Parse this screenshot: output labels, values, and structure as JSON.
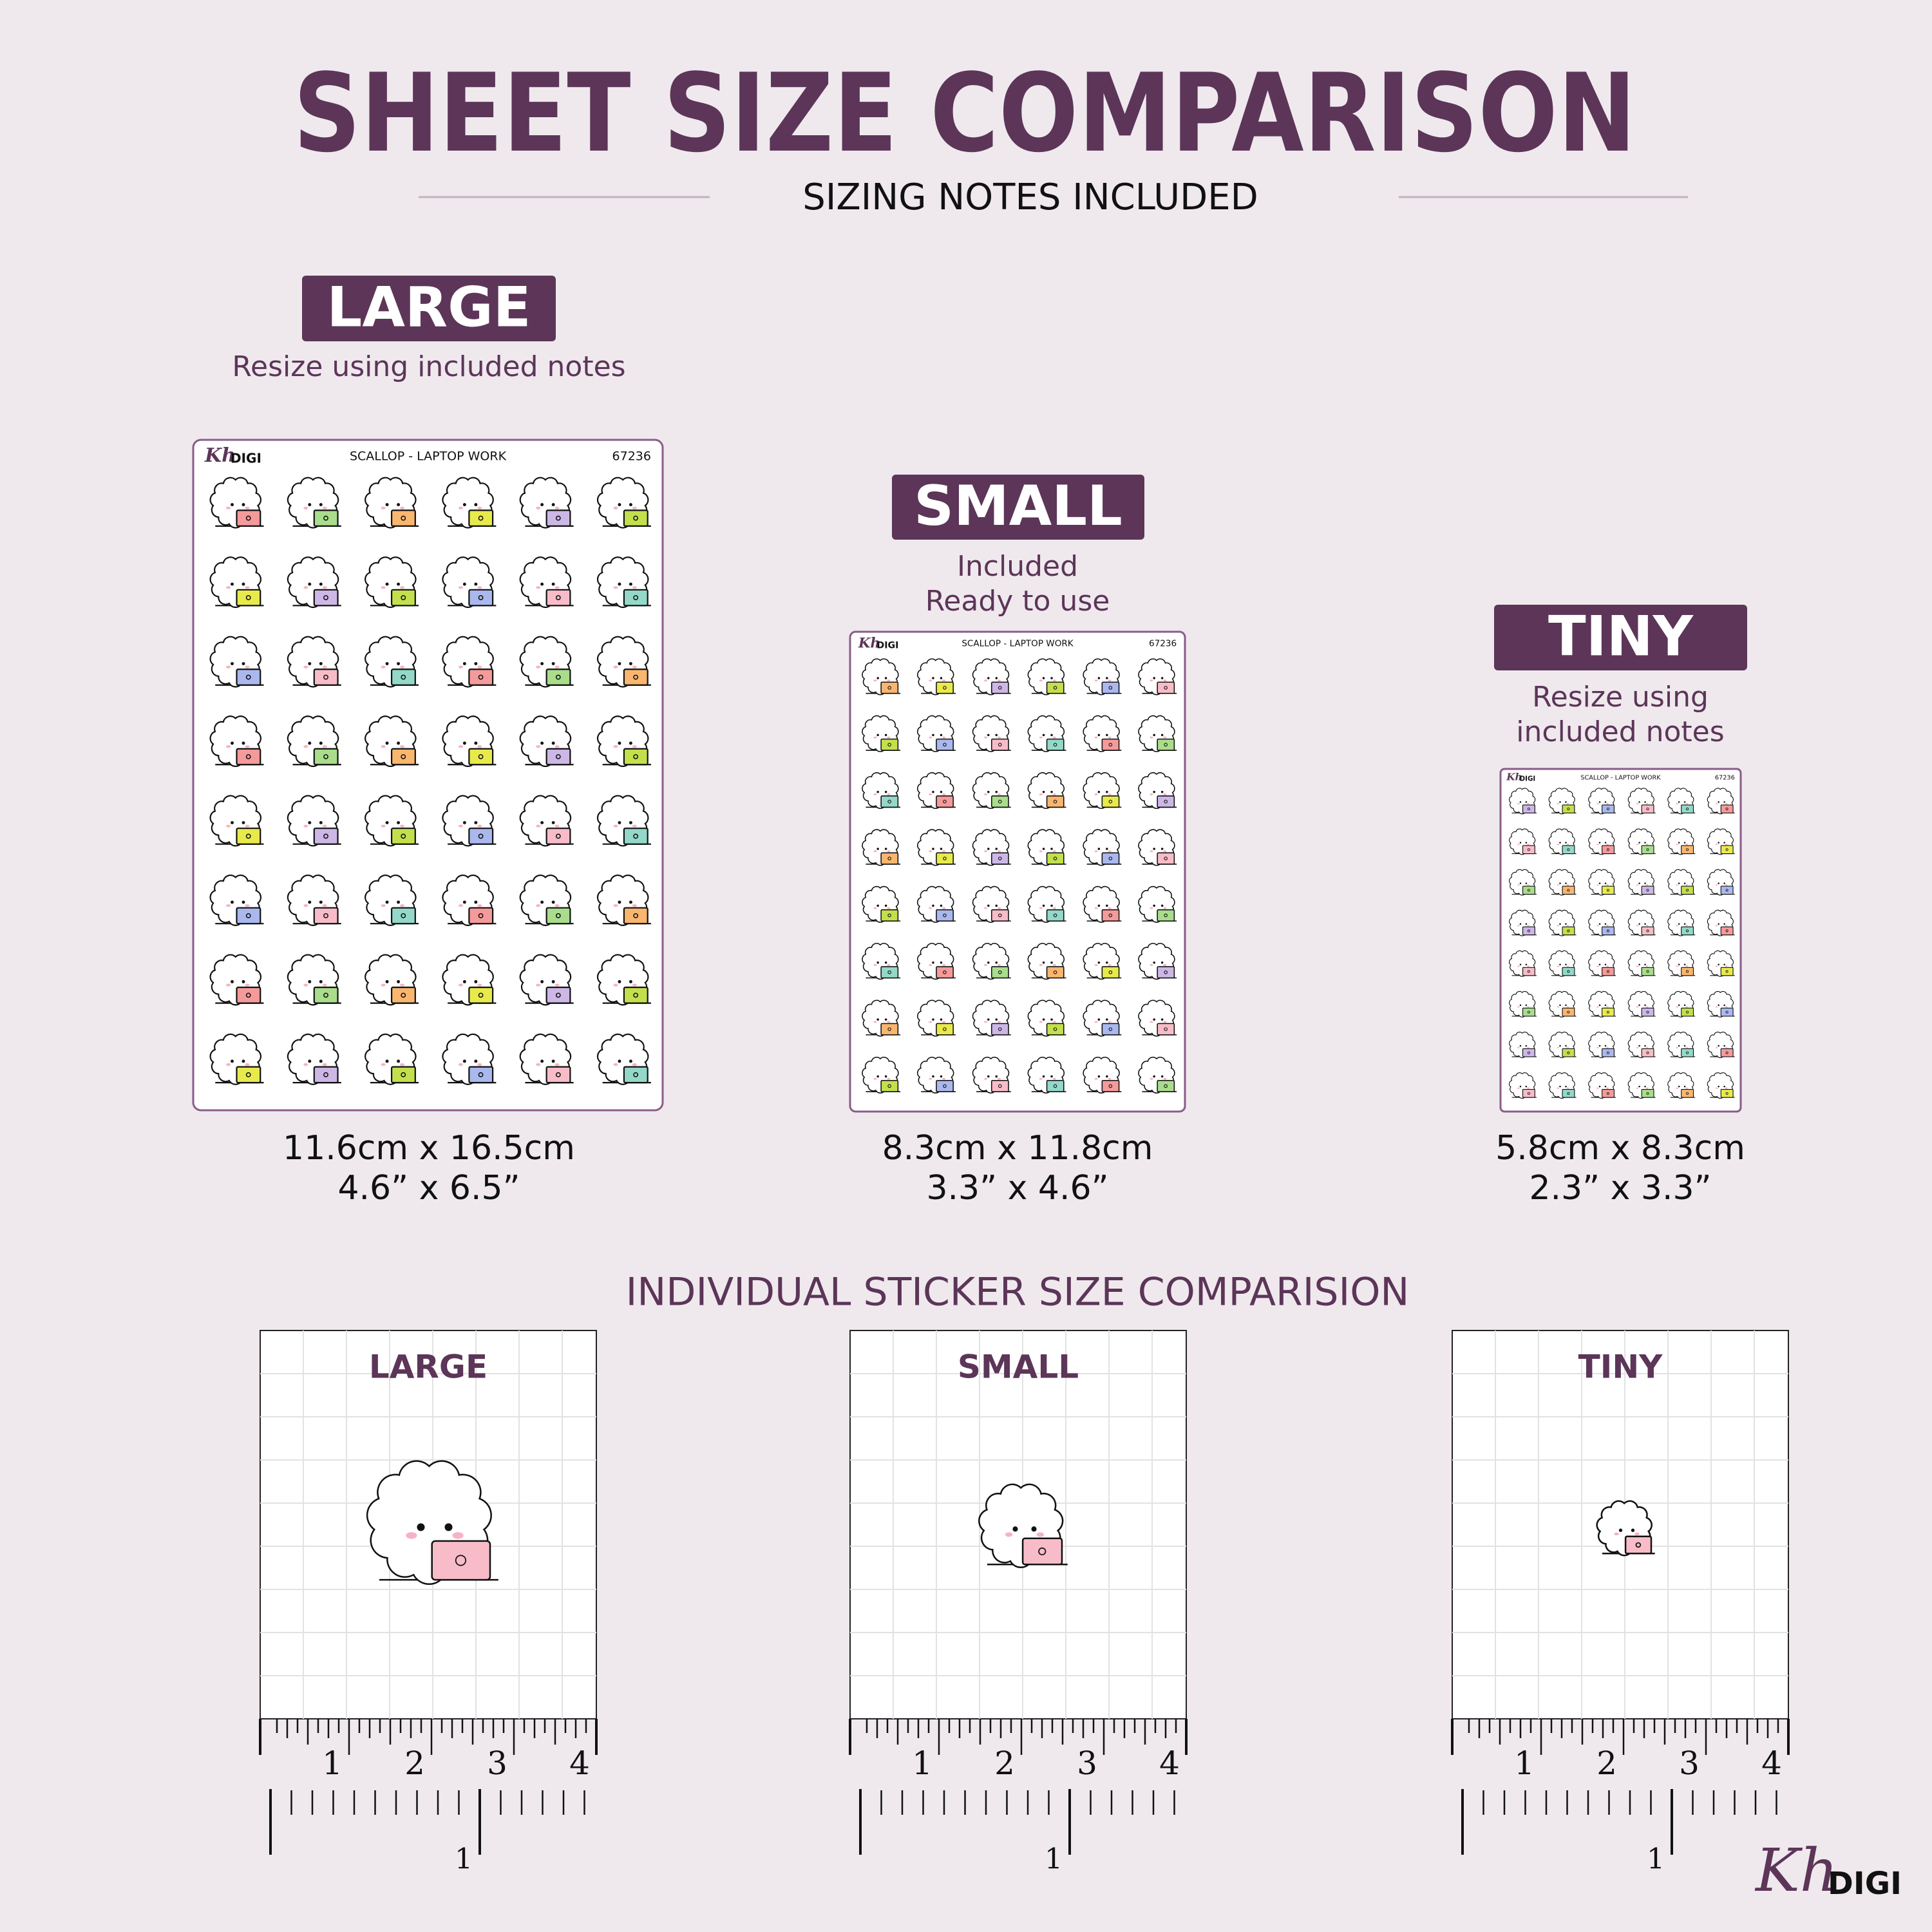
{
  "header": {
    "title": "SHEET SIZE COMPARISON",
    "subtitle": "SIZING NOTES INCLUDED"
  },
  "sheet_label": {
    "brand_script": "Kh",
    "brand": "DIGI",
    "name": "SCALLOP - LAPTOP WORK",
    "code": "67236"
  },
  "sheets": [
    {
      "badge": "LARGE",
      "note": [
        "Resize using included notes"
      ],
      "dims": [
        "11.6cm x 16.5cm",
        "4.6” x 6.5”"
      ]
    },
    {
      "badge": "SMALL",
      "note": [
        "Included",
        "Ready to use"
      ],
      "dims": [
        "8.3cm x 11.8cm",
        "3.3” x 4.6”"
      ]
    },
    {
      "badge": "TINY",
      "note": [
        "Resize using",
        "included notes"
      ],
      "dims": [
        "5.8cm x 8.3cm",
        "2.3” x 3.3”"
      ]
    }
  ],
  "section": {
    "title": "INDIVIDUAL STICKER SIZE COMPARISION",
    "panels": [
      "LARGE",
      "SMALL",
      "TINY"
    ]
  },
  "ruler": {
    "top_labels": [
      "1",
      "2",
      "3",
      "4"
    ],
    "bottom_label": "1"
  },
  "logo": {
    "script": "Kh",
    "text": "DIGI"
  }
}
